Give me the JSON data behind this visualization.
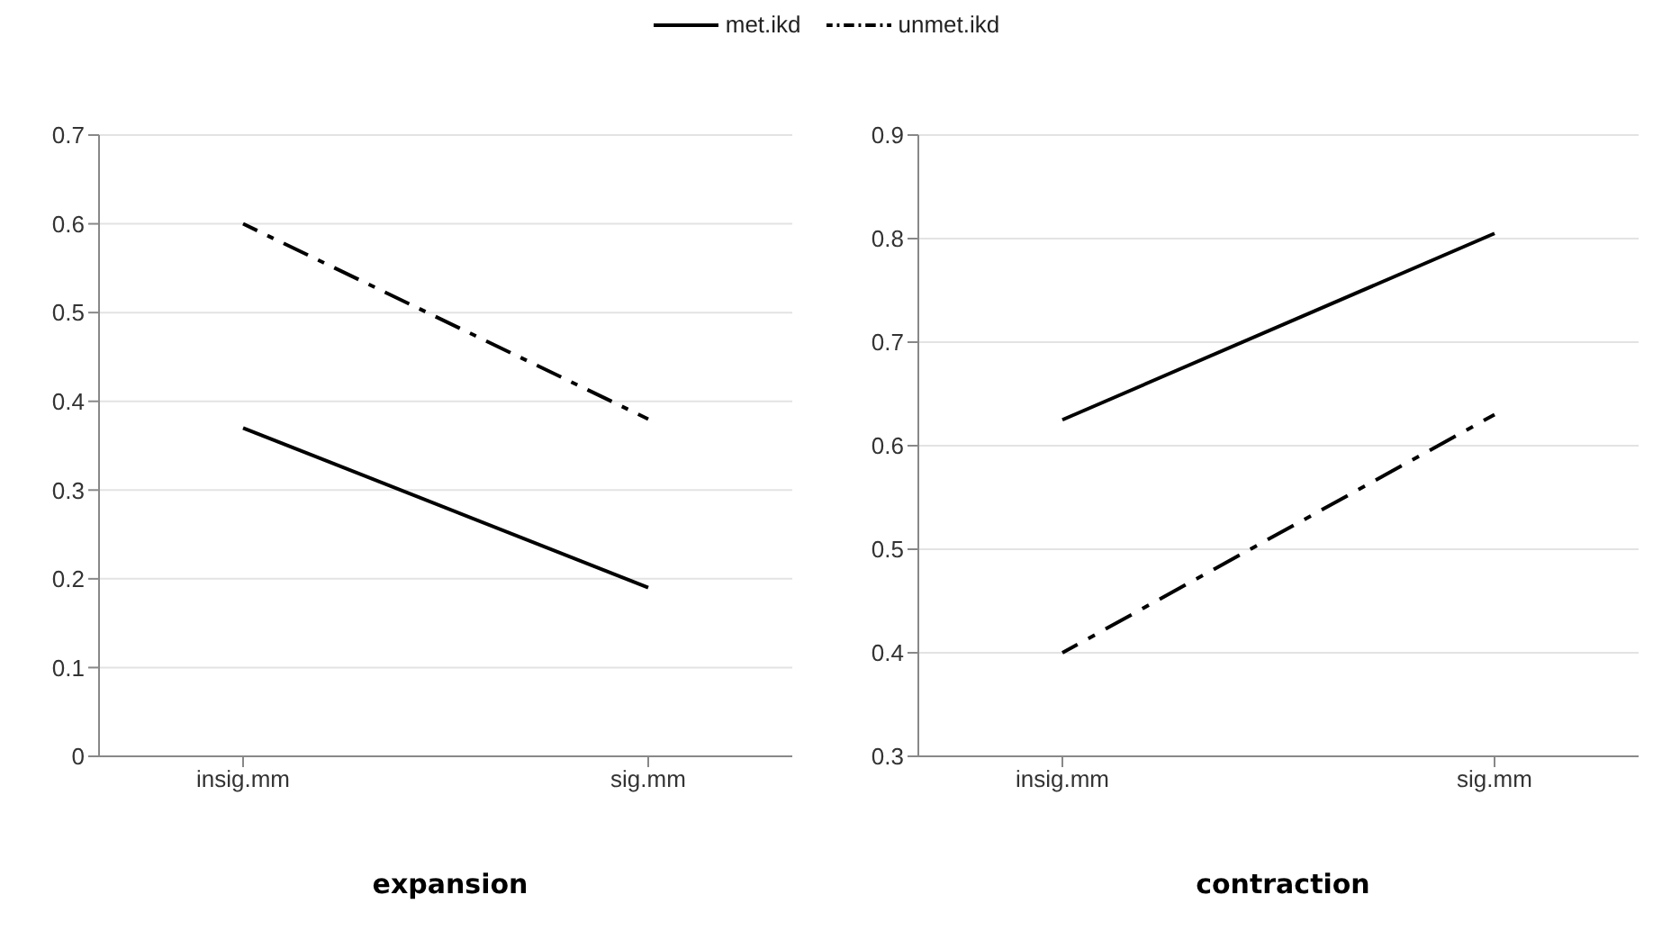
{
  "chart_data": [
    {
      "type": "line",
      "xlabel": "expansion",
      "categories": [
        "insig.mm",
        "sig.mm"
      ],
      "series": [
        {
          "name": "met.ikd",
          "color": "#000000",
          "values": [
            0.37,
            0.19
          ],
          "line_style": "solid"
        },
        {
          "name": "unmet.ikd",
          "color": "#000000",
          "values": [
            0.6,
            0.38
          ],
          "line_style": "dashed"
        }
      ],
      "ylim": [
        0,
        0.7
      ],
      "yticks": [
        0,
        0.1,
        0.2,
        0.3,
        0.4,
        0.5,
        0.6,
        0.7
      ],
      "grid": "y",
      "legend": "top",
      "marker": "none"
    },
    {
      "type": "line",
      "xlabel": "contraction",
      "categories": [
        "insig.mm",
        "sig.mm"
      ],
      "series": [
        {
          "color": "#000000",
          "values": [
            0.625,
            0.805
          ],
          "line_style": "solid"
        },
        {
          "color": "#000000",
          "values": [
            0.4,
            0.63
          ],
          "line_style": "dashed"
        }
      ],
      "ylim": [
        0.3,
        0.9
      ],
      "yticks": [
        0.3,
        0.4,
        0.5,
        0.6,
        0.7,
        0.8,
        0.9
      ],
      "grid": "y",
      "marker": "none"
    }
  ]
}
